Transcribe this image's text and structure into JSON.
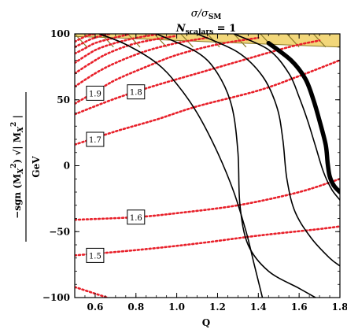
{
  "chart_data": {
    "type": "contour",
    "title_line1": "σ/σ",
    "title_line1_sub": "SM",
    "title_line2": "N",
    "title_line2_sub": "scalars",
    "title_line2_rest": " = 1",
    "xlabel": "Q",
    "ylabel_sign": "−sgn",
    "ylabel_arg": "(M",
    "ylabel_sub": "X",
    "ylabel_sup": "2",
    "ylabel_close": ")",
    "ylabel_sqrt_inner": "| M",
    "ylabel_sqrt_close": " |",
    "ylabel_unit": "GeV",
    "xlim": [
      0.5,
      1.8
    ],
    "ylim": [
      -100,
      100
    ],
    "xticks": [
      0.6,
      0.8,
      1.0,
      1.2,
      1.4,
      1.6,
      1.8
    ],
    "xtick_labels": [
      "0.6",
      "0.8",
      "1.0",
      "1.2",
      "1.4",
      "1.6",
      "1.8"
    ],
    "yticks": [
      -100,
      -50,
      0,
      50,
      100
    ],
    "ytick_labels": [
      "−100",
      "−50",
      "0",
      "50",
      "100"
    ],
    "colors": {
      "red_contour": "#e8202a",
      "black_contour": "#000000",
      "shade_fill": "#f2d77a",
      "shade_hatch": "#8a7a2a"
    },
    "red_contours": [
      {
        "level": "1.5",
        "points": [
          [
            0.5,
            -68
          ],
          [
            0.8,
            -64
          ],
          [
            1.1,
            -59
          ],
          [
            1.4,
            -53
          ],
          [
            1.7,
            -48
          ],
          [
            1.8,
            -46
          ]
        ],
        "label_at": [
          0.6,
          -68
        ]
      },
      {
        "level": "1.6",
        "points": [
          [
            0.5,
            -41
          ],
          [
            0.8,
            -39
          ],
          [
            1.0,
            -36
          ],
          [
            1.3,
            -30
          ],
          [
            1.6,
            -20
          ],
          [
            1.8,
            -10
          ]
        ],
        "label_at": [
          0.8,
          -39
        ]
      },
      {
        "level": "1.7",
        "points": [
          [
            0.5,
            16
          ],
          [
            0.7,
            26
          ],
          [
            0.9,
            35
          ],
          [
            1.1,
            45
          ],
          [
            1.4,
            57
          ],
          [
            1.6,
            68
          ],
          [
            1.8,
            80
          ]
        ],
        "label_at": [
          0.6,
          20
        ]
      },
      {
        "level": "1.8",
        "points": [
          [
            0.5,
            39
          ],
          [
            0.7,
            51
          ],
          [
            0.9,
            61
          ],
          [
            1.1,
            70
          ],
          [
            1.3,
            79
          ],
          [
            1.55,
            90
          ],
          [
            1.7,
            95
          ]
        ],
        "label_at": [
          0.8,
          56
        ]
      },
      {
        "level": "1.9",
        "points": [
          [
            0.5,
            47
          ],
          [
            0.6,
            56
          ],
          [
            0.7,
            65
          ],
          [
            0.85,
            75
          ],
          [
            1.0,
            84
          ],
          [
            1.2,
            92
          ],
          [
            1.4,
            97
          ]
        ],
        "label_at": [
          0.6,
          55
        ]
      },
      {
        "level": "",
        "points": [
          [
            0.5,
            60
          ],
          [
            0.6,
            70
          ],
          [
            0.7,
            78
          ],
          [
            0.85,
            87
          ],
          [
            1.0,
            93
          ],
          [
            1.15,
            97
          ]
        ],
        "label_at": null
      },
      {
        "level": "",
        "points": [
          [
            0.5,
            70
          ],
          [
            0.58,
            78
          ],
          [
            0.66,
            85
          ],
          [
            0.78,
            92
          ],
          [
            0.9,
            96
          ],
          [
            1.0,
            98.5
          ]
        ],
        "label_at": null
      },
      {
        "level": "",
        "points": [
          [
            0.5,
            78
          ],
          [
            0.56,
            84
          ],
          [
            0.62,
            89
          ],
          [
            0.72,
            94
          ],
          [
            0.82,
            97.5
          ],
          [
            0.9,
            99.5
          ]
        ],
        "label_at": null
      },
      {
        "level": "",
        "points": [
          [
            0.5,
            85
          ],
          [
            0.55,
            89
          ],
          [
            0.6,
            93
          ],
          [
            0.68,
            96.5
          ],
          [
            0.76,
            99.5
          ]
        ],
        "label_at": null
      },
      {
        "level": "",
        "points": [
          [
            0.5,
            90
          ],
          [
            0.54,
            93
          ],
          [
            0.58,
            96
          ],
          [
            0.64,
            99
          ],
          [
            0.68,
            100
          ]
        ],
        "label_at": null
      },
      {
        "level": "",
        "points": [
          [
            0.5,
            94
          ],
          [
            0.53,
            96.5
          ],
          [
            0.57,
            99
          ],
          [
            0.6,
            100
          ]
        ],
        "label_at": null
      },
      {
        "level": "",
        "points": [
          [
            0.5,
            -92
          ],
          [
            0.6,
            -97
          ],
          [
            0.66,
            -100
          ]
        ],
        "label_at": null
      }
    ],
    "black_contours": [
      {
        "width": 1.6,
        "points": [
          [
            0.62,
            100
          ],
          [
            0.75,
            92
          ],
          [
            0.9,
            78
          ],
          [
            1.0,
            62
          ],
          [
            1.1,
            40
          ],
          [
            1.2,
            10
          ],
          [
            1.28,
            -20
          ],
          [
            1.34,
            -50
          ],
          [
            1.38,
            -75
          ],
          [
            1.42,
            -100
          ]
        ]
      },
      {
        "width": 1.6,
        "points": [
          [
            0.9,
            100
          ],
          [
            1.1,
            86
          ],
          [
            1.2,
            70
          ],
          [
            1.27,
            45
          ],
          [
            1.3,
            10
          ],
          [
            1.31,
            -30
          ],
          [
            1.35,
            -60
          ],
          [
            1.45,
            -80
          ],
          [
            1.6,
            -93
          ],
          [
            1.68,
            -100
          ]
        ]
      },
      {
        "width": 1.6,
        "points": [
          [
            1.1,
            100
          ],
          [
            1.3,
            86
          ],
          [
            1.42,
            68
          ],
          [
            1.49,
            45
          ],
          [
            1.52,
            20
          ],
          [
            1.54,
            -10
          ],
          [
            1.58,
            -35
          ],
          [
            1.66,
            -55
          ],
          [
            1.75,
            -70
          ],
          [
            1.8,
            -76
          ]
        ]
      },
      {
        "width": 1.6,
        "points": [
          [
            1.28,
            100
          ],
          [
            1.45,
            88
          ],
          [
            1.55,
            70
          ],
          [
            1.6,
            52
          ],
          [
            1.64,
            35
          ],
          [
            1.68,
            15
          ],
          [
            1.72,
            -5
          ],
          [
            1.76,
            -18
          ],
          [
            1.8,
            -26
          ]
        ]
      },
      {
        "width": 5.5,
        "points": [
          [
            1.45,
            93
          ],
          [
            1.56,
            80
          ],
          [
            1.63,
            66
          ],
          [
            1.67,
            50
          ],
          [
            1.7,
            34
          ],
          [
            1.73,
            16
          ],
          [
            1.74,
            2
          ],
          [
            1.75,
            -8
          ],
          [
            1.77,
            -15
          ],
          [
            1.8,
            -20
          ]
        ]
      }
    ],
    "shaded_region": {
      "boundary": [
        [
          0.5,
          100
        ],
        [
          1.8,
          100
        ],
        [
          1.8,
          90
        ],
        [
          1.4,
          92.5
        ],
        [
          1.0,
          95
        ],
        [
          0.7,
          97
        ],
        [
          0.5,
          98
        ]
      ]
    },
    "hatch_lines": [
      [
        [
          0.5,
          99
        ],
        [
          1.8,
          90
        ]
      ]
    ]
  }
}
